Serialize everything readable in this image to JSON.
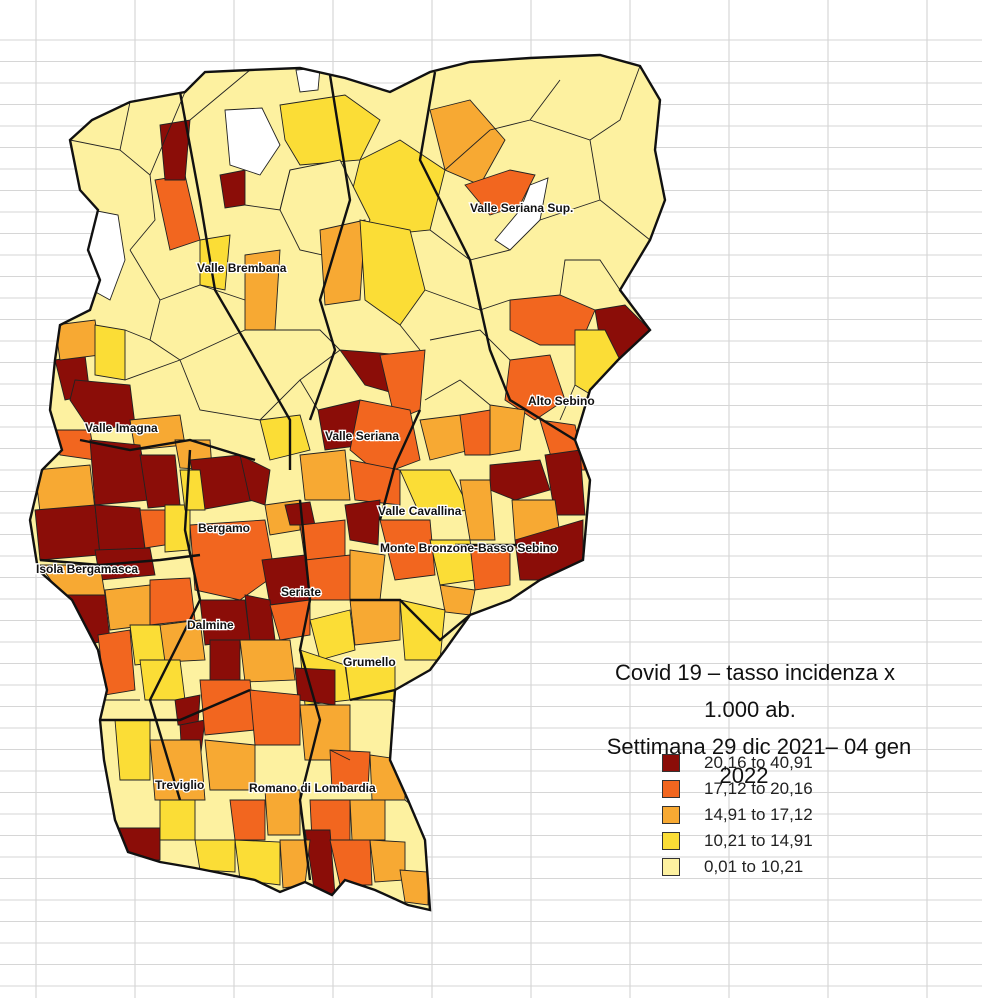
{
  "title": {
    "lines": [
      "Covid 19 – tasso incidenza x",
      "1.000 ab.",
      "Settimana 29 dic 2021– 04 gen",
      "2022"
    ]
  },
  "legend": {
    "items": [
      {
        "label": "20,16 to 40,91",
        "color": "#8b0d08"
      },
      {
        "label": "17,12 to 20,16",
        "color": "#f2661f"
      },
      {
        "label": "14,91 to 17,12",
        "color": "#f7a933"
      },
      {
        "label": "10,21 to 14,91",
        "color": "#fbdd36"
      },
      {
        "label": "0,01 to 10,21",
        "color": "#fdf1a0"
      }
    ]
  },
  "areas": [
    {
      "label": "Valle Seriana Sup."
    },
    {
      "label": "Valle Brembana"
    },
    {
      "label": "Alto Sebino"
    },
    {
      "label": "Valle Imagna"
    },
    {
      "label": "Valle Seriana"
    },
    {
      "label": "Valle Cavallina"
    },
    {
      "label": "Bergamo"
    },
    {
      "label": "Monte Bronzone-Basso Sebino"
    },
    {
      "label": "Isola Bergamasca"
    },
    {
      "label": "Seriate"
    },
    {
      "label": "Dalmine"
    },
    {
      "label": "Grumello"
    },
    {
      "label": "Treviglio"
    },
    {
      "label": "Romano di Lombardia"
    }
  ]
}
